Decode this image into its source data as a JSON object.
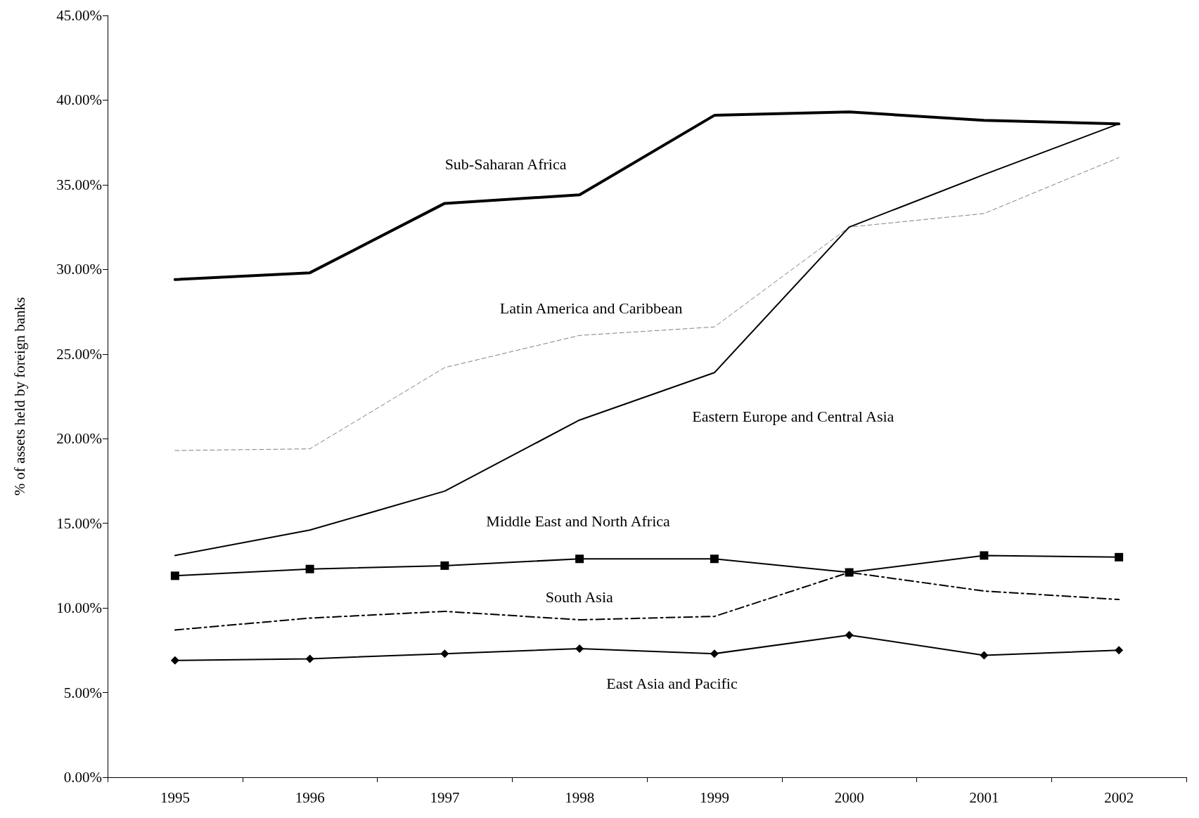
{
  "chart_data": {
    "type": "line",
    "ylabel": "% of assets held by foreign banks",
    "categories": [
      "1995",
      "1996",
      "1997",
      "1998",
      "1999",
      "2000",
      "2001",
      "2002"
    ],
    "series": [
      {
        "name": "Sub-Saharan Africa",
        "color": "#000000",
        "line_style": "solid",
        "marker": "none",
        "values": [
          29.4,
          29.8,
          33.9,
          34.4,
          39.1,
          39.3,
          38.8,
          38.6
        ]
      },
      {
        "name": "Latin America and Caribbean",
        "color": "#808080",
        "line_style": "dashed",
        "marker": "none",
        "values": [
          19.3,
          19.4,
          24.2,
          26.1,
          26.6,
          32.5,
          33.3,
          36.6
        ]
      },
      {
        "name": "Eastern Europe and Central Asia",
        "color": "#000000",
        "line_style": "solid",
        "marker": "none",
        "values": [
          13.1,
          14.6,
          16.9,
          21.1,
          23.9,
          32.5,
          35.6,
          38.6
        ]
      },
      {
        "name": "Middle East and North Africa",
        "color": "#000000",
        "line_style": "solid",
        "marker": "square",
        "values": [
          11.9,
          12.3,
          12.5,
          12.9,
          12.9,
          12.1,
          13.1,
          13.0
        ]
      },
      {
        "name": "South Asia",
        "color": "#000000",
        "line_style": "dashdot",
        "marker": "none",
        "values": [
          8.7,
          9.4,
          9.8,
          9.3,
          9.5,
          12.1,
          11.0,
          10.5
        ]
      },
      {
        "name": "East Asia and Pacific",
        "color": "#000000",
        "line_style": "solid",
        "marker": "diamond",
        "values": [
          6.9,
          7.0,
          7.3,
          7.6,
          7.3,
          8.4,
          7.2,
          7.5
        ]
      }
    ],
    "ylim": [
      0,
      45
    ],
    "yticks": [
      {
        "value": 0,
        "label": "0.00%"
      },
      {
        "value": 5,
        "label": "5.00%"
      },
      {
        "value": 10,
        "label": "10.00%"
      },
      {
        "value": 15,
        "label": "15.00%"
      },
      {
        "value": 20,
        "label": "20.00%"
      },
      {
        "value": 25,
        "label": "25.00%"
      },
      {
        "value": 30,
        "label": "30.00%"
      },
      {
        "value": 35,
        "label": "35.00%"
      },
      {
        "value": 40,
        "label": "40.00%"
      },
      {
        "value": 45,
        "label": "45.00%"
      }
    ],
    "grid": false,
    "legend": false
  }
}
